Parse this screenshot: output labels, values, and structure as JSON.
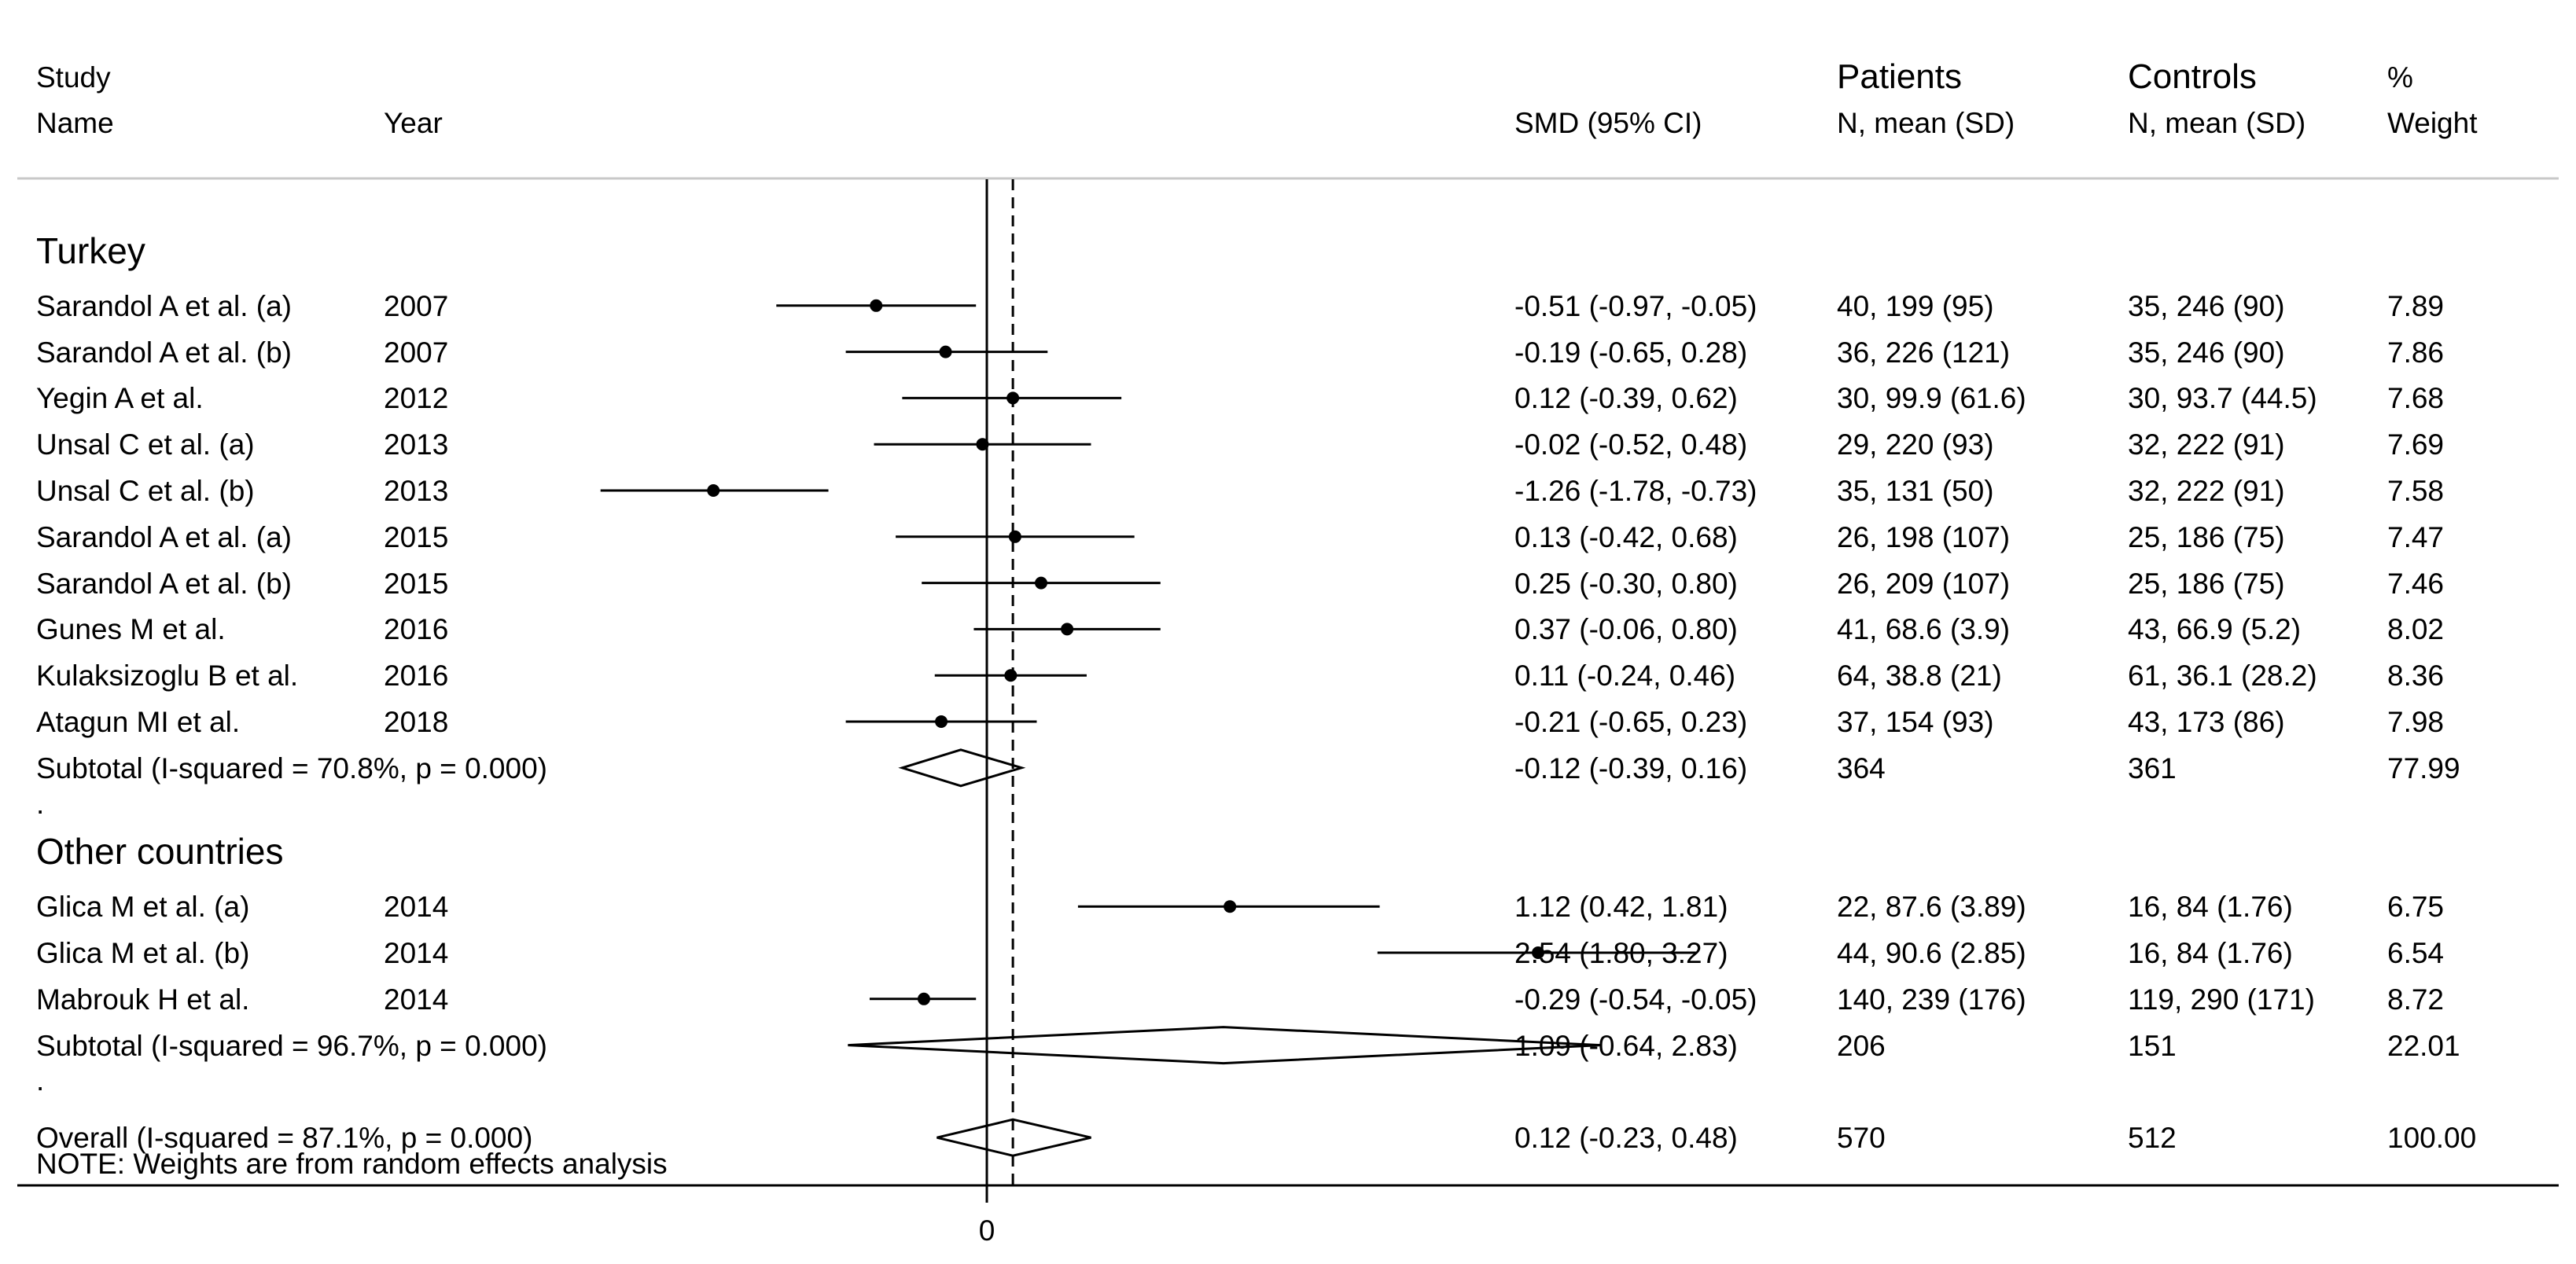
{
  "chart_data": {
    "type": "forest",
    "title": "",
    "xlabel": "",
    "measure": "SMD",
    "xlim": [
      -2.6,
      4.25
    ],
    "x_ticks": [
      0
    ],
    "reference_line": 0,
    "overall_line": 0.12,
    "headers": {
      "study_line1": "Study",
      "study_line2": "Name",
      "year": "Year",
      "smd": "SMD (95% CI)",
      "patients_line1": "Patients",
      "patients_line2": "N, mean (SD)",
      "controls_line1": "Controls",
      "controls_line2": "N, mean (SD)",
      "weight_line1": "%",
      "weight_line2": "Weight"
    },
    "groups": [
      {
        "name": "Turkey",
        "studies": [
          {
            "name": "Sarandol A et al.  (a)",
            "year": "2007",
            "smd": -0.51,
            "lo": -0.97,
            "hi": -0.05,
            "ci_text": "-0.51 (-0.97, -0.05)",
            "patients": "40, 199 (95)",
            "controls": "35, 246 (90)",
            "weight": 7.89,
            "weight_text": "7.89"
          },
          {
            "name": "Sarandol A et al. (b)",
            "year": "2007",
            "smd": -0.19,
            "lo": -0.65,
            "hi": 0.28,
            "ci_text": "-0.19 (-0.65, 0.28)",
            "patients": "36, 226 (121)",
            "controls": "35, 246 (90)",
            "weight": 7.86,
            "weight_text": "7.86"
          },
          {
            "name": "Yegin A et al.",
            "year": "2012",
            "smd": 0.12,
            "lo": -0.39,
            "hi": 0.62,
            "ci_text": "0.12 (-0.39, 0.62)",
            "patients": "30, 99.9 (61.6)",
            "controls": "30, 93.7 (44.5)",
            "weight": 7.68,
            "weight_text": "7.68"
          },
          {
            "name": "Unsal C et al. (a)",
            "year": "2013",
            "smd": -0.02,
            "lo": -0.52,
            "hi": 0.48,
            "ci_text": "-0.02 (-0.52, 0.48)",
            "patients": "29, 220 (93)",
            "controls": "32, 222 (91)",
            "weight": 7.69,
            "weight_text": "7.69"
          },
          {
            "name": "Unsal C et al. (b)",
            "year": "2013",
            "smd": -1.26,
            "lo": -1.78,
            "hi": -0.73,
            "ci_text": "-1.26 (-1.78, -0.73)",
            "patients": "35, 131 (50)",
            "controls": "32, 222 (91)",
            "weight": 7.58,
            "weight_text": "7.58"
          },
          {
            "name": "Sarandol A et al. (a)",
            "year": "2015",
            "smd": 0.13,
            "lo": -0.42,
            "hi": 0.68,
            "ci_text": "0.13 (-0.42, 0.68)",
            "patients": "26, 198 (107)",
            "controls": "25, 186 (75)",
            "weight": 7.47,
            "weight_text": "7.47"
          },
          {
            "name": "Sarandol A et al. (b)",
            "year": "2015",
            "smd": 0.25,
            "lo": -0.3,
            "hi": 0.8,
            "ci_text": "0.25 (-0.30, 0.80)",
            "patients": "26, 209 (107)",
            "controls": "25, 186 (75)",
            "weight": 7.46,
            "weight_text": "7.46"
          },
          {
            "name": "Gunes M et al.",
            "year": "2016",
            "smd": 0.37,
            "lo": -0.06,
            "hi": 0.8,
            "ci_text": "0.37 (-0.06, 0.80)",
            "patients": "41, 68.6 (3.9)",
            "controls": "43, 66.9 (5.2)",
            "weight": 8.02,
            "weight_text": "8.02"
          },
          {
            "name": "Kulaksizoglu B et al.",
            "year": "2016",
            "smd": 0.11,
            "lo": -0.24,
            "hi": 0.46,
            "ci_text": "0.11 (-0.24, 0.46)",
            "patients": "64, 38.8 (21)",
            "controls": "61, 36.1 (28.2)",
            "weight": 8.36,
            "weight_text": "8.36"
          },
          {
            "name": "Atagun MI et al.",
            "year": "2018",
            "smd": -0.21,
            "lo": -0.65,
            "hi": 0.23,
            "ci_text": "-0.21 (-0.65, 0.23)",
            "patients": "37, 154 (93)",
            "controls": "43, 173 (86)",
            "weight": 7.98,
            "weight_text": "7.98"
          }
        ],
        "subtotal": {
          "label": "Subtotal  (I-squared = 70.8%, p = 0.000)",
          "smd": -0.12,
          "lo": -0.39,
          "hi": 0.16,
          "ci_text": "-0.12 (-0.39, 0.16)",
          "patients": "364",
          "controls": "361",
          "weight_text": "77.99"
        }
      },
      {
        "name": "Other countries",
        "studies": [
          {
            "name": "Glica M et al. (a)",
            "year": "2014",
            "smd": 1.12,
            "lo": 0.42,
            "hi": 1.81,
            "ci_text": "1.12 (0.42, 1.81)",
            "patients": "22, 87.6 (3.89)",
            "controls": "16, 84 (1.76)",
            "weight": 6.75,
            "weight_text": "6.75"
          },
          {
            "name": "Glica M et al. (b)",
            "year": "2014",
            "smd": 2.54,
            "lo": 1.8,
            "hi": 3.27,
            "ci_text": "2.54 (1.80, 3.27)",
            "patients": "44, 90.6 (2.85)",
            "controls": "16, 84 (1.76)",
            "weight": 6.54,
            "weight_text": "6.54"
          },
          {
            "name": "Mabrouk H et al.",
            "year": "2014",
            "smd": -0.29,
            "lo": -0.54,
            "hi": -0.05,
            "ci_text": "-0.29 (-0.54, -0.05)",
            "patients": "140, 239 (176)",
            "controls": "119, 290 (171)",
            "weight": 8.72,
            "weight_text": "8.72"
          }
        ],
        "subtotal": {
          "label": "Subtotal  (I-squared = 96.7%, p = 0.000)",
          "smd": 1.09,
          "lo": -0.64,
          "hi": 2.83,
          "ci_text": "1.09 (-0.64, 2.83)",
          "patients": "206",
          "controls": "151",
          "weight_text": "22.01"
        }
      }
    ],
    "overall": {
      "label": "Overall  (I-squared = 87.1%, p = 0.000)",
      "smd": 0.12,
      "lo": -0.23,
      "hi": 0.48,
      "ci_text": "0.12 (-0.23, 0.48)",
      "patients": "570",
      "controls": "512",
      "weight_text": "100.00"
    },
    "note": "NOTE: Weights are from random effects analysis",
    "spacer_label": "."
  }
}
